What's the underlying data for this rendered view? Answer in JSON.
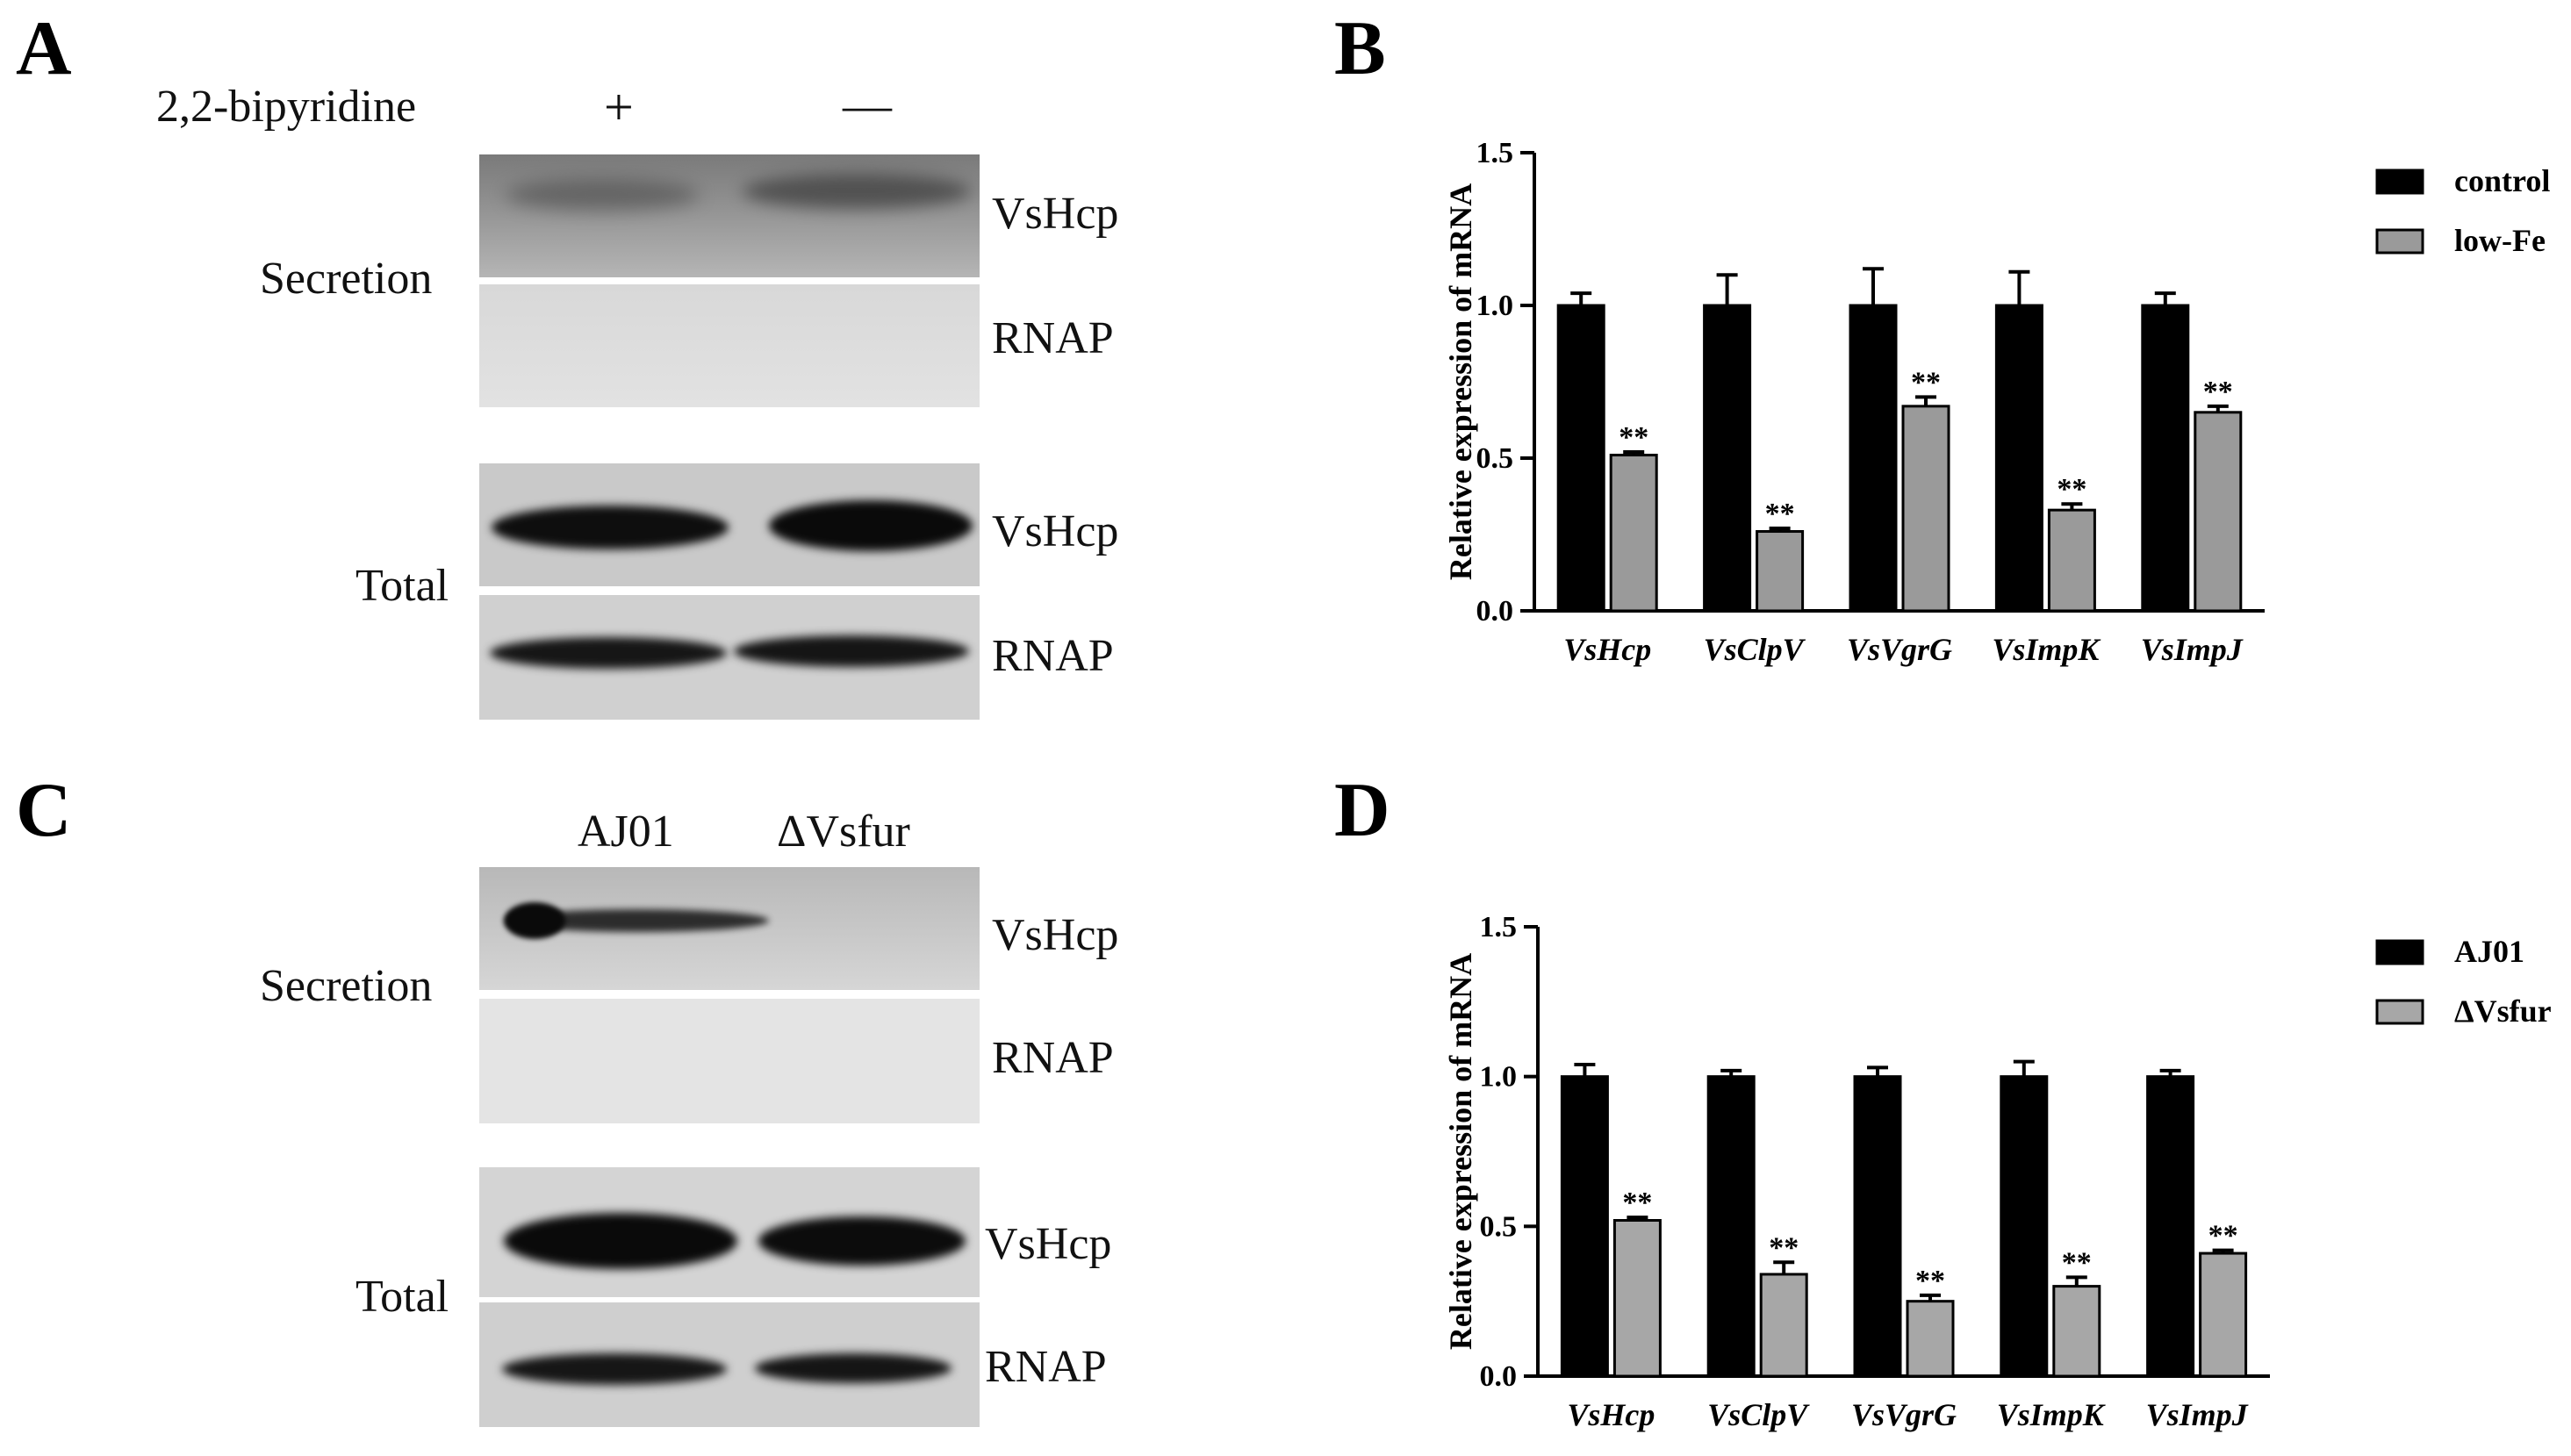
{
  "panels": {
    "a": {
      "letter": "A",
      "treatment_label": "2,2-bipyridine",
      "lane_plus": "+",
      "lane_minus": "—",
      "group_secretion": "Secretion",
      "group_total": "Total",
      "row_labels": [
        "VsHcp",
        "RNAP",
        "VsHcp",
        "RNAP"
      ]
    },
    "b": {
      "letter": "B"
    },
    "c": {
      "letter": "C",
      "lane_1": "AJ01",
      "lane_2": "ΔVsfur",
      "group_secretion": "Secretion",
      "group_total": "Total",
      "row_labels": [
        "VsHcp",
        "RNAP",
        "VsHcp",
        "RNAP"
      ]
    },
    "d": {
      "letter": "D"
    }
  },
  "chart_data": [
    {
      "panel": "B",
      "type": "bar",
      "ylabel": "Relative expression of mRNA",
      "ylim": [
        0,
        1.5
      ],
      "yticks": [
        "0.0",
        "0.5",
        "1.0",
        "1.5"
      ],
      "categories": [
        "VsHcp",
        "VsClpV",
        "VsVgrG",
        "VsImpK",
        "VsImpJ"
      ],
      "series": [
        {
          "name": "control",
          "color": "#000000",
          "values": [
            1.0,
            1.0,
            1.0,
            1.0,
            1.0
          ],
          "errors": [
            0.04,
            0.1,
            0.12,
            0.11,
            0.04
          ]
        },
        {
          "name": "low-Fe",
          "color": "#9a9a9a",
          "values": [
            0.51,
            0.26,
            0.67,
            0.33,
            0.65
          ],
          "errors": [
            0.01,
            0.01,
            0.03,
            0.02,
            0.02
          ]
        }
      ],
      "significance": [
        "**",
        "**",
        "**",
        "**",
        "**"
      ],
      "legend_position": "top-right"
    },
    {
      "panel": "D",
      "type": "bar",
      "ylabel": "Relative expression of mRNA",
      "ylim": [
        0,
        1.5
      ],
      "yticks": [
        "0.0",
        "0.5",
        "1.0",
        "1.5"
      ],
      "categories": [
        "VsHcp",
        "VsClpV",
        "VsVgrG",
        "VsImpK",
        "VsImpJ"
      ],
      "series": [
        {
          "name": "AJ01",
          "color": "#000000",
          "values": [
            1.0,
            1.0,
            1.0,
            1.0,
            1.0
          ],
          "errors": [
            0.04,
            0.02,
            0.03,
            0.05,
            0.02
          ]
        },
        {
          "name": "ΔVsfur",
          "color": "#a7a7a7",
          "values": [
            0.52,
            0.34,
            0.25,
            0.3,
            0.41
          ],
          "errors": [
            0.01,
            0.04,
            0.02,
            0.03,
            0.01
          ]
        }
      ],
      "significance": [
        "**",
        "**",
        "**",
        "**",
        "**"
      ],
      "legend_position": "top-right"
    }
  ]
}
